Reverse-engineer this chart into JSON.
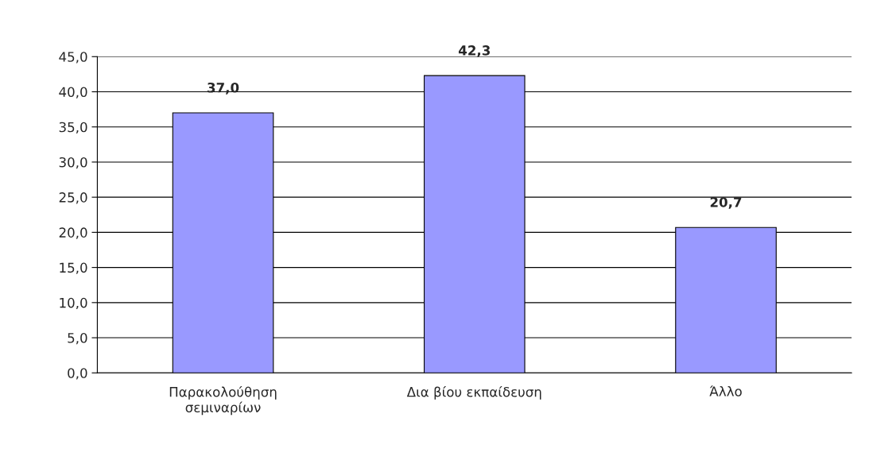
{
  "chart_data": {
    "type": "bar",
    "categories": [
      "Παρακολούθηση\nσεμιναρίων",
      "Δια βίου εκπαίδευση",
      "Άλλο"
    ],
    "values": [
      37.0,
      42.3,
      20.7
    ],
    "value_labels": [
      "37,0",
      "42,3",
      "20,7"
    ],
    "color": "#9999ff",
    "ylim": [
      0,
      45
    ],
    "yticks": [
      {
        "value": 0,
        "label": "0,0"
      },
      {
        "value": 5,
        "label": "5,0"
      },
      {
        "value": 10,
        "label": "10,0"
      },
      {
        "value": 15,
        "label": "15,0"
      },
      {
        "value": 20,
        "label": "20,0"
      },
      {
        "value": 25,
        "label": "25,0"
      },
      {
        "value": 30,
        "label": "30,0"
      },
      {
        "value": 35,
        "label": "35,0"
      },
      {
        "value": 40,
        "label": "40,0"
      },
      {
        "value": 45,
        "label": "45,0"
      }
    ],
    "grid": "y",
    "legend": false
  }
}
